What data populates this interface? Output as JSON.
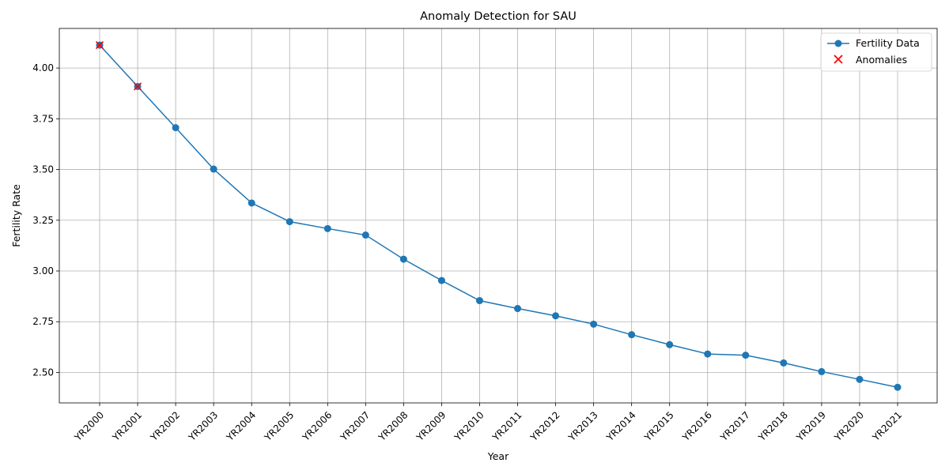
{
  "chart_data": {
    "type": "line",
    "title": "Anomaly Detection for SAU",
    "xlabel": "Year",
    "ylabel": "Fertility Rate",
    "categories": [
      "YR2000",
      "YR2001",
      "YR2002",
      "YR2003",
      "YR2004",
      "YR2005",
      "YR2006",
      "YR2007",
      "YR2008",
      "YR2009",
      "YR2010",
      "YR2011",
      "YR2012",
      "YR2013",
      "YR2014",
      "YR2015",
      "YR2016",
      "YR2017",
      "YR2018",
      "YR2019",
      "YR2020",
      "YR2021"
    ],
    "series": [
      {
        "name": "Fertility Data",
        "color": "#1f77b4",
        "marker": "circle",
        "values": [
          4.113,
          3.909,
          3.706,
          3.502,
          3.335,
          3.243,
          3.209,
          3.177,
          3.058,
          2.953,
          2.854,
          2.815,
          2.779,
          2.738,
          2.686,
          2.637,
          2.591,
          2.585,
          2.547,
          2.504,
          2.466,
          2.427
        ]
      },
      {
        "name": "Anomalies",
        "color": "#ff0000",
        "marker": "x",
        "points": [
          {
            "x": "YR2000",
            "y": 4.113
          },
          {
            "x": "YR2001",
            "y": 3.909
          }
        ]
      }
    ],
    "ylim": [
      2.35,
      4.195
    ],
    "yticks": [
      2.5,
      2.75,
      3.0,
      3.25,
      3.5,
      3.75,
      4.0
    ],
    "ytick_labels": [
      "2.50",
      "2.75",
      "3.00",
      "3.25",
      "3.50",
      "3.75",
      "4.00"
    ],
    "grid": true,
    "legend_position": "top-right"
  }
}
